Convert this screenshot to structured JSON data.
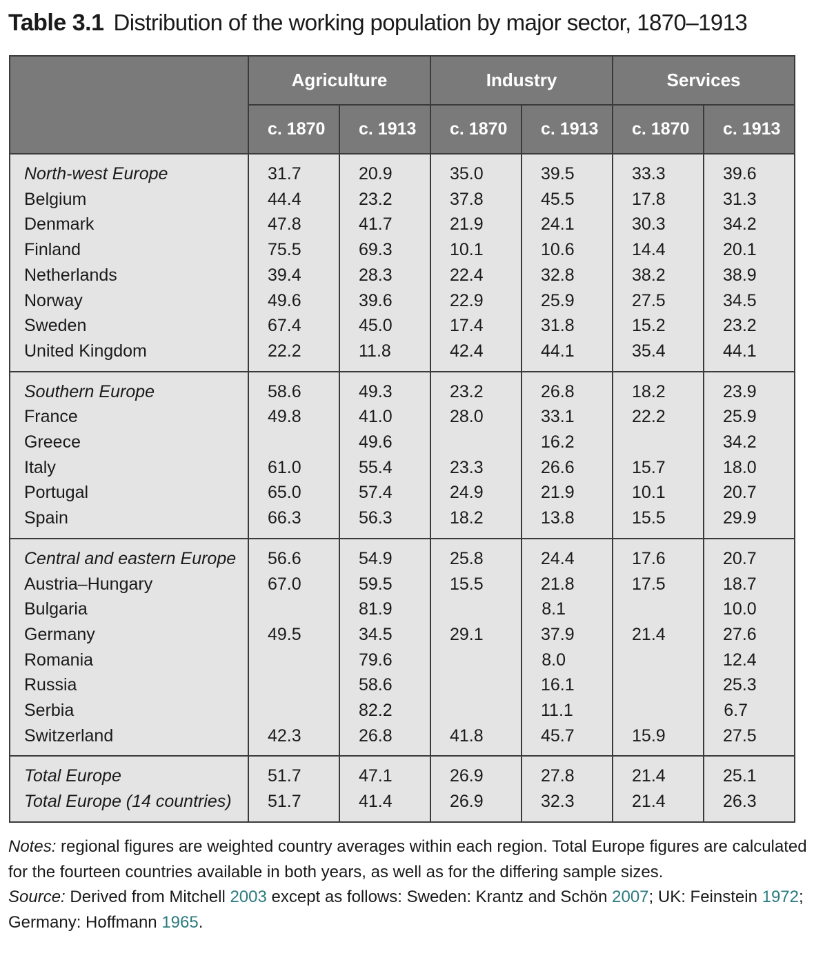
{
  "title": {
    "label": "Table 3.1",
    "text": "Distribution of the working population by major sector, 1870–1913"
  },
  "table": {
    "sectors": [
      "Agriculture",
      "Industry",
      "Services"
    ],
    "years": [
      "c. 1870",
      "c. 1913",
      "c. 1870",
      "c. 1913",
      "c. 1870",
      "c. 1913"
    ],
    "groups": [
      {
        "rows": [
          {
            "name": "North-west Europe",
            "region": true,
            "values": [
              "31.7",
              "20.9",
              "35.0",
              "39.5",
              "33.3",
              "39.6"
            ]
          },
          {
            "name": "Belgium",
            "values": [
              "44.4",
              "23.2",
              "37.8",
              "45.5",
              "17.8",
              "31.3"
            ]
          },
          {
            "name": "Denmark",
            "values": [
              "47.8",
              "41.7",
              "21.9",
              "24.1",
              "30.3",
              "34.2"
            ]
          },
          {
            "name": "Finland",
            "values": [
              "75.5",
              "69.3",
              "10.1",
              "10.6",
              "14.4",
              "20.1"
            ]
          },
          {
            "name": "Netherlands",
            "values": [
              "39.4",
              "28.3",
              "22.4",
              "32.8",
              "38.2",
              "38.9"
            ]
          },
          {
            "name": "Norway",
            "values": [
              "49.6",
              "39.6",
              "22.9",
              "25.9",
              "27.5",
              "34.5"
            ]
          },
          {
            "name": "Sweden",
            "values": [
              "67.4",
              "45.0",
              "17.4",
              "31.8",
              "15.2",
              "23.2"
            ]
          },
          {
            "name": "United Kingdom",
            "values": [
              "22.2",
              "11.8",
              "42.4",
              "44.1",
              "35.4",
              "44.1"
            ]
          }
        ]
      },
      {
        "rows": [
          {
            "name": "Southern Europe",
            "region": true,
            "values": [
              "58.6",
              "49.3",
              "23.2",
              "26.8",
              "18.2",
              "23.9"
            ]
          },
          {
            "name": "France",
            "values": [
              "49.8",
              "41.0",
              "28.0",
              "33.1",
              "22.2",
              "25.9"
            ]
          },
          {
            "name": "Greece",
            "values": [
              "",
              "49.6",
              "",
              "16.2",
              "",
              "34.2"
            ]
          },
          {
            "name": "Italy",
            "values": [
              "61.0",
              "55.4",
              "23.3",
              "26.6",
              "15.7",
              "18.0"
            ]
          },
          {
            "name": "Portugal",
            "values": [
              "65.0",
              "57.4",
              "24.9",
              "21.9",
              "10.1",
              "20.7"
            ]
          },
          {
            "name": "Spain",
            "values": [
              "66.3",
              "56.3",
              "18.2",
              "13.8",
              "15.5",
              "29.9"
            ]
          }
        ]
      },
      {
        "rows": [
          {
            "name": "Central and eastern Europe",
            "region": true,
            "values": [
              "56.6",
              "54.9",
              "25.8",
              "24.4",
              "17.6",
              "20.7"
            ]
          },
          {
            "name": "Austria–Hungary",
            "values": [
              "67.0",
              "59.5",
              "15.5",
              "21.8",
              "17.5",
              "18.7"
            ]
          },
          {
            "name": "Bulgaria",
            "values": [
              "",
              "81.9",
              "",
              "8.1",
              "",
              "10.0"
            ]
          },
          {
            "name": "Germany",
            "values": [
              "49.5",
              "34.5",
              "29.1",
              "37.9",
              "21.4",
              "27.6"
            ]
          },
          {
            "name": "Romania",
            "values": [
              "",
              "79.6",
              "",
              "8.0",
              "",
              "12.4"
            ]
          },
          {
            "name": "Russia",
            "values": [
              "",
              "58.6",
              "",
              "16.1",
              "",
              "25.3"
            ]
          },
          {
            "name": "Serbia",
            "values": [
              "",
              "82.2",
              "",
              "11.1",
              "",
              "6.7"
            ]
          },
          {
            "name": "Switzerland",
            "values": [
              "42.3",
              "26.8",
              "41.8",
              "45.7",
              "15.9",
              "27.5"
            ]
          }
        ]
      },
      {
        "rows": [
          {
            "name": "Total Europe",
            "region": true,
            "values": [
              "51.7",
              "47.1",
              "26.9",
              "27.8",
              "21.4",
              "25.1"
            ]
          },
          {
            "name": "Total Europe (14 countries)",
            "region": true,
            "values": [
              "51.7",
              "41.4",
              "26.9",
              "32.3",
              "21.4",
              "26.3"
            ]
          }
        ]
      }
    ]
  },
  "notes": {
    "notes_label": "Notes:",
    "notes_text": "regional figures are weighted country averages within each region. Total Europe figures are calculated for the fourteen countries available in both years, as well as for the differing sample sizes.",
    "source_label": "Source:",
    "source_parts": [
      {
        "text": "Derived from Mitchell ",
        "ref": false
      },
      {
        "text": "2003",
        "ref": true
      },
      {
        "text": " except as follows: Sweden: Krantz and Schön ",
        "ref": false
      },
      {
        "text": "2007",
        "ref": true
      },
      {
        "text": "; UK: Feinstein ",
        "ref": false
      },
      {
        "text": "1972",
        "ref": true
      },
      {
        "text": "; Germany: Hoffmann ",
        "ref": false
      },
      {
        "text": "1965",
        "ref": true
      },
      {
        "text": ".",
        "ref": false
      }
    ]
  }
}
